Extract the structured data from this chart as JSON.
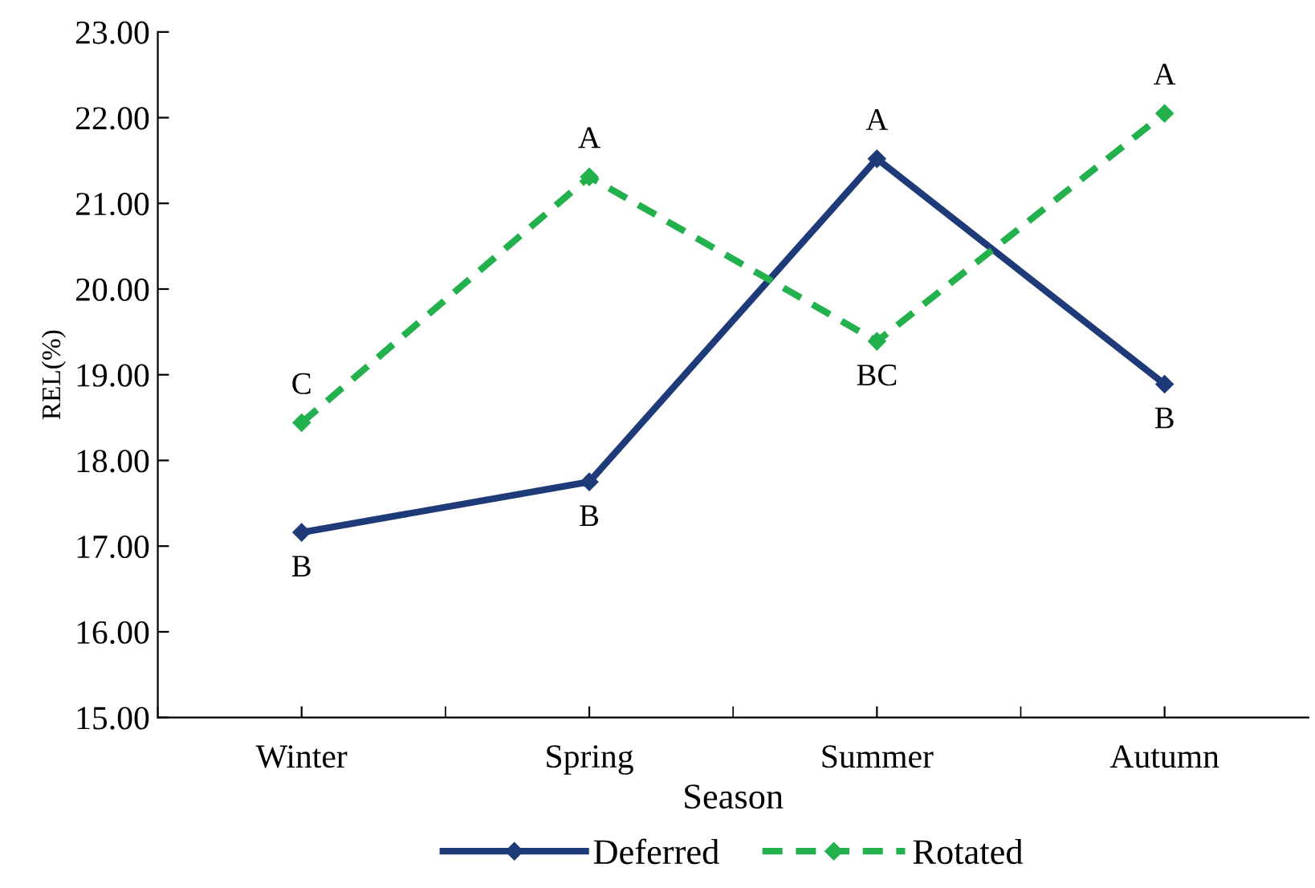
{
  "chart_data": {
    "type": "line",
    "xlabel": "Season",
    "ylabel": "REL(%)",
    "categories": [
      "Winter",
      "Spring",
      "Summer",
      "Autumn"
    ],
    "ylim": [
      15,
      23
    ],
    "yticks": [
      {
        "value": 15,
        "label": "15.00"
      },
      {
        "value": 16,
        "label": "16.00"
      },
      {
        "value": 17,
        "label": "17.00"
      },
      {
        "value": 18,
        "label": "18.00"
      },
      {
        "value": 19,
        "label": "19.00"
      },
      {
        "value": 20,
        "label": "20.00"
      },
      {
        "value": 21,
        "label": "21.00"
      },
      {
        "value": 22,
        "label": "22.00"
      },
      {
        "value": 23,
        "label": "23.00"
      }
    ],
    "series": [
      {
        "name": "Deferred",
        "color": "#1f3a78",
        "values": [
          17.16,
          17.75,
          21.52,
          18.89
        ],
        "line_style": "solid"
      },
      {
        "name": "Rotated",
        "color": "#22b14c",
        "values": [
          18.44,
          21.31,
          19.39,
          22.05
        ],
        "line_style": "dashed"
      }
    ],
    "annotations": [
      {
        "text": "B",
        "x": "Winter",
        "y": 17.16
      },
      {
        "text": "B",
        "x": "Spring",
        "y": 17.75
      },
      {
        "text": "A",
        "x": "Summer",
        "y": 21.52
      },
      {
        "text": "B",
        "x": "Autumn",
        "y": 18.89
      },
      {
        "text": "C",
        "x": "Winter",
        "y": 18.44
      },
      {
        "text": "A",
        "x": "Spring",
        "y": 21.31
      },
      {
        "text": "BC",
        "x": "Summer",
        "y": 19.39
      },
      {
        "text": "A",
        "x": "Autumn",
        "y": 22.05
      }
    ],
    "marker": "diamond",
    "legend": "bottom",
    "grid": false
  }
}
